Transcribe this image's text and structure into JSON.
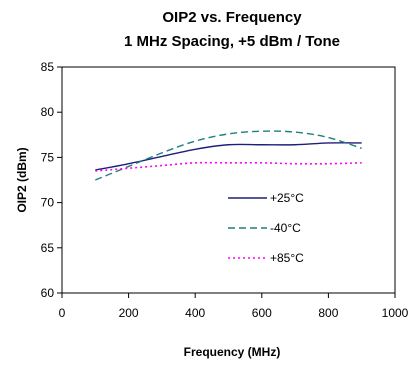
{
  "chart_data": {
    "type": "line",
    "title": "OIP2 vs. Frequency",
    "subtitle": "1 MHz Spacing, +5 dBm / Tone",
    "xlabel": "Frequency (MHz)",
    "ylabel": "OIP2 (dBm)",
    "xlim": [
      0,
      1000
    ],
    "ylim": [
      60,
      85
    ],
    "xticks": [
      0,
      200,
      400,
      600,
      800,
      1000
    ],
    "yticks": [
      60,
      65,
      70,
      75,
      80,
      85
    ],
    "xtick_labels": [
      "0",
      "200",
      "400",
      "600",
      "800",
      "1000"
    ],
    "ytick_labels": [
      "60",
      "65",
      "70",
      "75",
      "80",
      "85"
    ],
    "grid": false,
    "legend_position": "inside-right",
    "series": [
      {
        "name": "+25°C",
        "color": "#1f1f7a",
        "dash": "solid",
        "points": [
          [
            100,
            73.6
          ],
          [
            200,
            74.3
          ],
          [
            300,
            75.1
          ],
          [
            400,
            75.9
          ],
          [
            500,
            76.4
          ],
          [
            600,
            76.4
          ],
          [
            700,
            76.4
          ],
          [
            800,
            76.6
          ],
          [
            900,
            76.6
          ]
        ]
      },
      {
        "name": "-40°C",
        "color": "#1f7f7f",
        "dash": "dashed",
        "points": [
          [
            100,
            72.5
          ],
          [
            200,
            74.0
          ],
          [
            300,
            75.5
          ],
          [
            400,
            76.8
          ],
          [
            500,
            77.6
          ],
          [
            600,
            77.9
          ],
          [
            700,
            77.8
          ],
          [
            800,
            77.2
          ],
          [
            900,
            76.0
          ]
        ]
      },
      {
        "name": "+85°C",
        "color": "#ff00ff",
        "dash": "dotted",
        "points": [
          [
            100,
            73.5
          ],
          [
            200,
            73.8
          ],
          [
            300,
            74.1
          ],
          [
            400,
            74.4
          ],
          [
            500,
            74.4
          ],
          [
            600,
            74.4
          ],
          [
            700,
            74.3
          ],
          [
            800,
            74.3
          ],
          [
            900,
            74.4
          ]
        ]
      }
    ]
  }
}
